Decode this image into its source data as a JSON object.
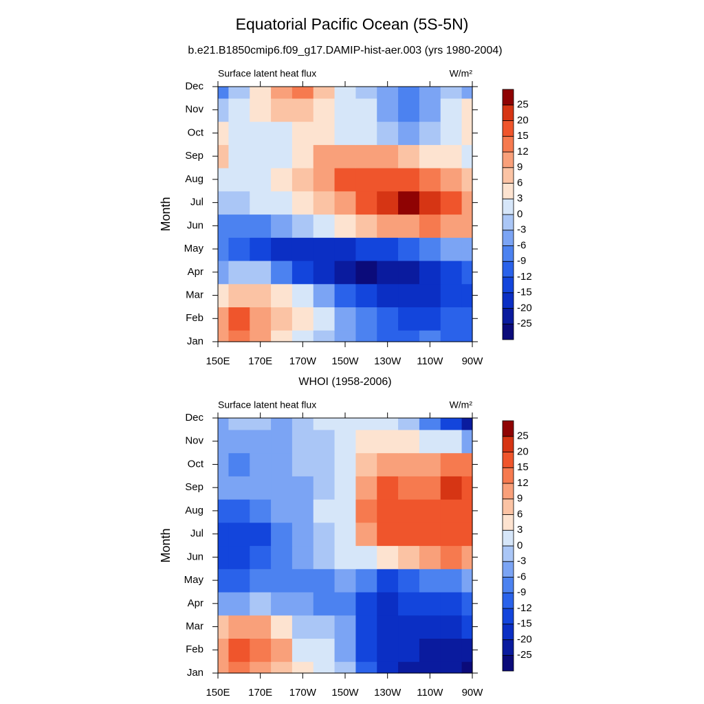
{
  "title": "Equatorial Pacific Ocean (5S-5N)",
  "chart_data": [
    {
      "type": "contour",
      "title": "b.e21.B1850cmip6.f09_g17.DAMIP-hist-aer.003 (yrs 1980-2004)",
      "left_string": "Surface latent heat flux",
      "right_string": "W/m²",
      "ylabel": "Month",
      "months": [
        "Jan",
        "Feb",
        "Mar",
        "Apr",
        "May",
        "Jun",
        "Jul",
        "Aug",
        "Sep",
        "Oct",
        "Nov",
        "Dec"
      ],
      "x": [
        150,
        160,
        170,
        180,
        190,
        200,
        210,
        220,
        230,
        240,
        250,
        260,
        270
      ],
      "xlim": [
        150,
        270
      ],
      "xticks": [
        {
          "value": 150,
          "label": "150E"
        },
        {
          "value": 170,
          "label": "170E"
        },
        {
          "value": 190,
          "label": "170W"
        },
        {
          "value": 210,
          "label": "150W"
        },
        {
          "value": 230,
          "label": "130W"
        },
        {
          "value": 250,
          "label": "110W"
        },
        {
          "value": 270,
          "label": "90W"
        }
      ],
      "z": [
        [
          12,
          14,
          10,
          6,
          3,
          -1,
          -4,
          -7,
          -9,
          -10,
          -8,
          -9,
          -9
        ],
        [
          10,
          16,
          12,
          9,
          4,
          1,
          -3,
          -7,
          -10,
          -12,
          -12,
          -11,
          -10
        ],
        [
          6,
          8,
          8,
          6,
          2,
          -3,
          -9,
          -14,
          -17,
          -18,
          -16,
          -13,
          -12
        ],
        [
          -3,
          0,
          -1,
          -6,
          -12,
          -18,
          -24,
          -26,
          -24,
          -20,
          -16,
          -13,
          -11
        ],
        [
          -8,
          -9,
          -13,
          -16,
          -18,
          -18,
          -16,
          -14,
          -12,
          -10,
          -8,
          -5,
          -3
        ],
        [
          -6,
          -6,
          -6,
          -3,
          -1,
          2,
          5,
          8,
          10,
          12,
          14,
          12,
          10
        ],
        [
          -2,
          -1,
          1,
          2,
          5,
          8,
          12,
          18,
          24,
          27,
          24,
          18,
          12
        ],
        [
          3,
          2,
          2,
          4,
          7,
          12,
          16,
          18,
          19,
          18,
          15,
          12,
          9
        ],
        [
          8,
          3,
          2,
          3,
          6,
          10,
          12,
          12,
          10,
          7,
          5,
          4,
          3
        ],
        [
          6,
          3,
          2,
          3,
          4,
          4,
          2,
          1,
          -1,
          -3,
          -2,
          3,
          5
        ],
        [
          -2,
          2,
          5,
          9,
          9,
          6,
          2,
          1,
          -4,
          -6,
          -3,
          2,
          4
        ],
        [
          -6,
          -1,
          6,
          12,
          14,
          8,
          2,
          -2,
          -5,
          -6,
          -4,
          -2,
          -3
        ]
      ],
      "levels": [
        -25,
        -20,
        -15,
        -12,
        -9,
        -6,
        -3,
        0,
        3,
        6,
        9,
        12,
        15,
        20,
        25
      ],
      "colors": [
        "#0b0b7a",
        "#0a1b9e",
        "#0b2fc4",
        "#1345dc",
        "#2a62ea",
        "#4c82f0",
        "#7ba4f4",
        "#aac6f6",
        "#d6e6f9",
        "#fde3d0",
        "#fbc3a4",
        "#f9a07a",
        "#f67a4f",
        "#ef552c",
        "#d63514",
        "#8f0303"
      ]
    },
    {
      "type": "contour",
      "title": "WHOI (1958-2006)",
      "left_string": "Surface latent heat flux",
      "right_string": "W/m²",
      "ylabel": "Month",
      "months": [
        "Jan",
        "Feb",
        "Mar",
        "Apr",
        "May",
        "Jun",
        "Jul",
        "Aug",
        "Sep",
        "Oct",
        "Nov",
        "Dec"
      ],
      "x": [
        150,
        160,
        170,
        180,
        190,
        200,
        210,
        220,
        230,
        240,
        250,
        260,
        270
      ],
      "xlim": [
        150,
        270
      ],
      "xticks": [
        {
          "value": 150,
          "label": "150E"
        },
        {
          "value": 170,
          "label": "170E"
        },
        {
          "value": 190,
          "label": "170W"
        },
        {
          "value": 210,
          "label": "150W"
        },
        {
          "value": 230,
          "label": "130W"
        },
        {
          "value": 250,
          "label": "110W"
        },
        {
          "value": 270,
          "label": "90W"
        }
      ],
      "z": [
        [
          10,
          14,
          12,
          8,
          4,
          1,
          -2,
          -10,
          -16,
          -20,
          -22,
          -24,
          -26
        ],
        [
          12,
          16,
          14,
          10,
          3,
          1,
          -3,
          -12,
          -16,
          -18,
          -21,
          -22,
          -22
        ],
        [
          8,
          10,
          10,
          6,
          -1,
          -2,
          -5,
          -14,
          -16,
          -16,
          -15,
          -16,
          -14
        ],
        [
          -3,
          -3,
          -2,
          -3,
          -4,
          -6,
          -8,
          -14,
          -16,
          -14,
          -12,
          -12,
          -9
        ],
        [
          -10,
          -9,
          -8,
          -8,
          -7,
          -6,
          -5,
          -8,
          -12,
          -9,
          -7,
          -6,
          -3
        ],
        [
          -12,
          -13,
          -10,
          -8,
          -5,
          -2,
          1,
          3,
          6,
          9,
          12,
          13,
          12
        ],
        [
          -13,
          -14,
          -12,
          -8,
          -5,
          -1,
          3,
          12,
          16,
          17,
          18,
          19,
          18
        ],
        [
          -9,
          -10,
          -8,
          -5,
          -3,
          1,
          3,
          14,
          18,
          18,
          17,
          19,
          18
        ],
        [
          -4,
          -5,
          -4,
          -4,
          -3,
          -1,
          3,
          12,
          16,
          15,
          14,
          22,
          18
        ],
        [
          -5,
          -6,
          -4,
          -3,
          -2,
          -1,
          2,
          9,
          12,
          12,
          12,
          14,
          13
        ],
        [
          -3,
          -4,
          -3,
          -3,
          -2,
          -1,
          1,
          4,
          6,
          5,
          3,
          1,
          -3
        ],
        [
          -3,
          -2,
          -2,
          -3,
          -1,
          1,
          1,
          2,
          1,
          -2,
          -6,
          -12,
          -20
        ]
      ],
      "levels": [
        -25,
        -20,
        -15,
        -12,
        -9,
        -6,
        -3,
        0,
        3,
        6,
        9,
        12,
        15,
        20,
        25
      ],
      "colors": [
        "#0b0b7a",
        "#0a1b9e",
        "#0b2fc4",
        "#1345dc",
        "#2a62ea",
        "#4c82f0",
        "#7ba4f4",
        "#aac6f6",
        "#d6e6f9",
        "#fde3d0",
        "#fbc3a4",
        "#f9a07a",
        "#f67a4f",
        "#ef552c",
        "#d63514",
        "#8f0303"
      ]
    }
  ]
}
